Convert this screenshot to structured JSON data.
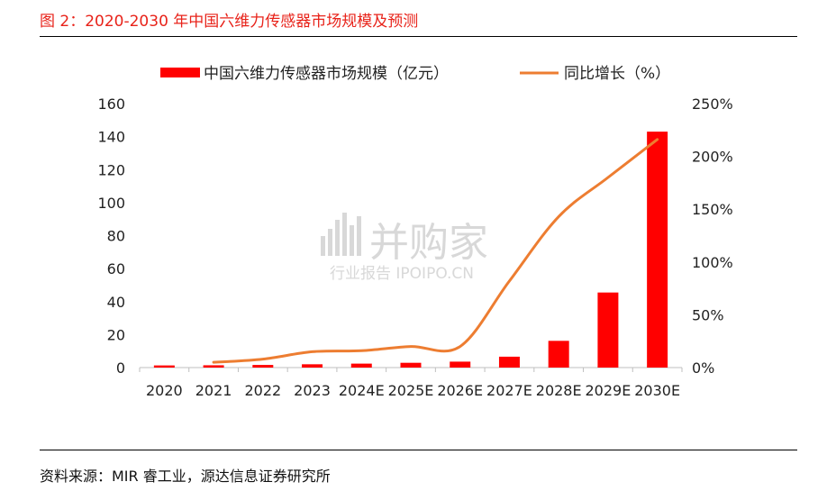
{
  "header": {
    "title": "图 2：2020-2030 年中国六维力传感器市场规模及预测"
  },
  "footer": {
    "source": "资料来源：MIR 睿工业，源达信息证券研究所"
  },
  "watermark": {
    "main": "并购家",
    "sub": "行业报告 IPOIPO.CN"
  },
  "colors": {
    "bar": "#ff0000",
    "line": "#ed7d31",
    "title": "#e8231a"
  },
  "chart_data": {
    "type": "bar+line",
    "categories": [
      "2020",
      "2021",
      "2022",
      "2023",
      "2024E",
      "2025E",
      "2026E",
      "2027E",
      "2028E",
      "2029E",
      "2030E"
    ],
    "series": [
      {
        "name": "中国六维力传感器市场规模（亿元）",
        "type": "bar",
        "axis": "left",
        "values": [
          1.3,
          1.4,
          1.6,
          2.0,
          2.4,
          2.9,
          3.6,
          6.6,
          16.2,
          45.5,
          143.0
        ]
      },
      {
        "name": "同比增长（%）",
        "type": "line",
        "axis": "right",
        "values": [
          null,
          5,
          8,
          15,
          16,
          20,
          20,
          82,
          143,
          180,
          216
        ]
      }
    ],
    "y_left": {
      "lim": [
        0,
        160
      ],
      "ticks": [
        0,
        20,
        40,
        60,
        80,
        100,
        120,
        140,
        160
      ]
    },
    "y_right": {
      "lim": [
        0,
        250
      ],
      "ticks": [
        "0%",
        "50%",
        "100%",
        "150%",
        "200%",
        "250%"
      ]
    },
    "legend": "top",
    "grid": false
  }
}
